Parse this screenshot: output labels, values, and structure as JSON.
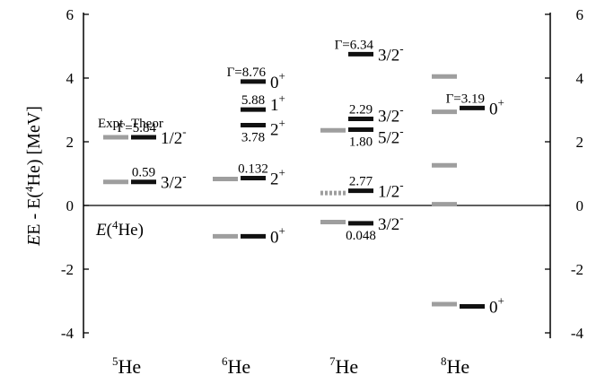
{
  "chart_data": {
    "type": "level-scheme",
    "ylabel": "E - E(4He)  [MeV]",
    "ylabel_parts": {
      "prefix": "E - E(",
      "sup": "4",
      "suffix": "He)  [MeV]"
    },
    "ylim": [
      -4.4,
      6.4
    ],
    "yticks": [
      -4,
      -2,
      0,
      2,
      4,
      6
    ],
    "ytick_labels": [
      "-4",
      "-2",
      "0",
      "2",
      "4",
      "6"
    ],
    "isotopes": [
      {
        "mass": "5",
        "symbol": "He"
      },
      {
        "mass": "6",
        "symbol": "He"
      },
      {
        "mass": "7",
        "symbol": "He"
      },
      {
        "mass": "8",
        "symbol": "He"
      }
    ],
    "legend": {
      "expt": "Expt",
      "theor": "Theor"
    },
    "reference_label": {
      "prefix": "E(",
      "sup": "4",
      "suffix": "He)"
    },
    "series_colors": {
      "expt": "#9e9e9e",
      "theor": "#111111"
    },
    "levels": [
      {
        "nucleus": 0,
        "kind": "expt",
        "energy": 0.74
      },
      {
        "nucleus": 0,
        "kind": "expt",
        "energy": 2.14
      },
      {
        "nucleus": 0,
        "kind": "theor",
        "energy": 0.74,
        "spin": "3/2",
        "parity": "-",
        "width": "0.59"
      },
      {
        "nucleus": 0,
        "kind": "theor",
        "energy": 2.14,
        "spin": "1/2",
        "parity": "-",
        "width": "Γ=5.84"
      },
      {
        "nucleus": 1,
        "kind": "expt",
        "energy": -0.97
      },
      {
        "nucleus": 1,
        "kind": "expt",
        "energy": 0.83
      },
      {
        "nucleus": 1,
        "kind": "theor",
        "energy": -0.97,
        "spin": "0",
        "parity": "+"
      },
      {
        "nucleus": 1,
        "kind": "theor",
        "energy": 0.86,
        "spin": "2",
        "parity": "+",
        "width": "0.132"
      },
      {
        "nucleus": 1,
        "kind": "theor",
        "energy": 2.52,
        "spin": "2",
        "parity": "+",
        "width": "3.78"
      },
      {
        "nucleus": 1,
        "kind": "theor",
        "energy": 3.01,
        "spin": "1",
        "parity": "+",
        "width": "5.88"
      },
      {
        "nucleus": 1,
        "kind": "theor",
        "energy": 3.89,
        "spin": "0",
        "parity": "+",
        "width": "Γ=8.76"
      },
      {
        "nucleus": 2,
        "kind": "expt",
        "energy": -0.52
      },
      {
        "nucleus": 2,
        "kind": "expt",
        "energy": 0.39,
        "dotted": true
      },
      {
        "nucleus": 2,
        "kind": "expt",
        "energy": 2.36
      },
      {
        "nucleus": 2,
        "kind": "theor",
        "energy": -0.56,
        "spin": "3/2",
        "parity": "-",
        "width": "0.048"
      },
      {
        "nucleus": 2,
        "kind": "theor",
        "energy": 0.46,
        "spin": "1/2",
        "parity": "-",
        "width": "2.77"
      },
      {
        "nucleus": 2,
        "kind": "theor",
        "energy": 2.38,
        "spin": "5/2",
        "parity": "-",
        "width": "1.80"
      },
      {
        "nucleus": 2,
        "kind": "theor",
        "energy": 2.72,
        "spin": "3/2",
        "parity": "-",
        "width": "2.29"
      },
      {
        "nucleus": 2,
        "kind": "theor",
        "energy": 4.75,
        "spin": "3/2",
        "parity": "-",
        "width": "Γ=6.34"
      },
      {
        "nucleus": 3,
        "kind": "expt",
        "energy": -3.1
      },
      {
        "nucleus": 3,
        "kind": "expt",
        "energy": 0.04
      },
      {
        "nucleus": 3,
        "kind": "expt",
        "energy": 1.26
      },
      {
        "nucleus": 3,
        "kind": "expt",
        "energy": 2.94
      },
      {
        "nucleus": 3,
        "kind": "expt",
        "energy": 4.05
      },
      {
        "nucleus": 3,
        "kind": "theor",
        "energy": -3.17,
        "spin": "0",
        "parity": "+"
      },
      {
        "nucleus": 3,
        "kind": "theor",
        "energy": 3.06,
        "spin": "0",
        "parity": "+",
        "width": "Γ=3.19"
      }
    ]
  }
}
